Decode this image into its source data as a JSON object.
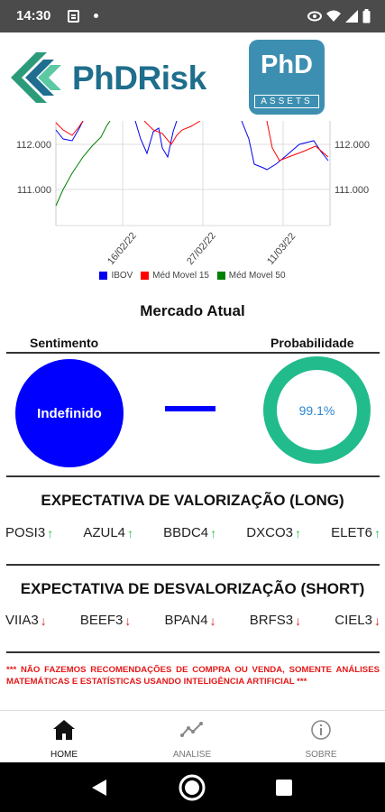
{
  "status_bar": {
    "time": "14:30"
  },
  "brand": {
    "name": "PhDRisk",
    "partner_logo_top": "PhD",
    "partner_logo_bottom": "ASSETS"
  },
  "chart_data": {
    "type": "line",
    "x_ticks": [
      "16/02/22",
      "27/02/22",
      "11/03/22"
    ],
    "y_ticks": [
      "112.000",
      "111.000"
    ],
    "y_ticks_right": [
      "112.000",
      "111.000"
    ],
    "series": [
      {
        "name": "IBOV",
        "color": "#0000ee"
      },
      {
        "name": "Méd Movel 15",
        "color": "#ff0000"
      },
      {
        "name": "Méd Movel 50",
        "color": "#008000"
      }
    ]
  },
  "market": {
    "title": "Mercado Atual",
    "sentiment_label": "Sentimento",
    "probability_label": "Probabilidade",
    "sentiment_value": "Indefinido",
    "probability_value": "99.1%"
  },
  "long": {
    "title": "EXPECTATIVA DE VALORIZAÇÃO (LONG)",
    "tickers": [
      "POSI3",
      "AZUL4",
      "BBDC4",
      "DXCO3",
      "ELET6"
    ]
  },
  "short": {
    "title": "EXPECTATIVA DE DESVALORIZAÇÃO (SHORT)",
    "tickers": [
      "VIIA3",
      "BEEF3",
      "BPAN4",
      "BRFS3",
      "CIEL3"
    ]
  },
  "disclaimer": "*** NÃO FAZEMOS RECOMENDAÇÕES DE COMPRA OU VENDA, SOMENTE ANÁLISES MATEMÁTICAS E ESTATÍSTICAS USANDO INTELIGÊNCIA ARTIFICIAL ***",
  "nav": {
    "items": [
      {
        "label": "HOME",
        "icon": "home-icon"
      },
      {
        "label": "ANALISE",
        "icon": "trend-icon"
      },
      {
        "label": "SOBRE",
        "icon": "info-icon"
      }
    ]
  }
}
